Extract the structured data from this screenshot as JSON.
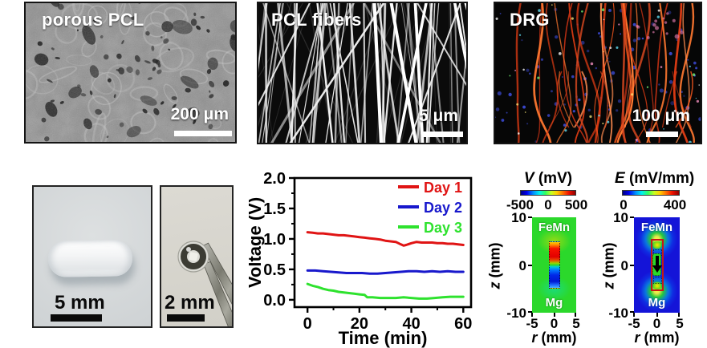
{
  "micrographs": [
    {
      "label": "porous PCL",
      "scale_bar": "200 μm"
    },
    {
      "label": "PCL fibers",
      "scale_bar": "5 μm"
    },
    {
      "label": "DRG",
      "scale_bar": "100 μm"
    }
  ],
  "photos": [
    {
      "scale_bar": "5 mm"
    },
    {
      "scale_bar": "2 mm"
    }
  ],
  "chart_data": {
    "type": "line",
    "title": "",
    "xlabel": "Time (min)",
    "ylabel": "Voltage (V)",
    "xlim": [
      -5,
      63
    ],
    "ylim": [
      -0.12,
      2.0
    ],
    "xticks": [
      "0",
      "20",
      "40",
      "60"
    ],
    "x_minor_ticks": [
      10,
      30,
      50
    ],
    "yticks": [
      "0.0",
      "0.5",
      "1.0",
      "1.5",
      "2.0"
    ],
    "y_minor_ticks": [
      0.25,
      0.75,
      1.25,
      1.75
    ],
    "grid": false,
    "legend_position": "top-right",
    "series": [
      {
        "name": "Day 1",
        "color": "#e01414",
        "x": [
          0,
          2,
          4,
          6,
          8,
          10,
          12,
          14,
          16,
          18,
          20,
          22,
          24,
          26,
          28,
          30,
          32,
          34,
          36,
          37,
          38,
          40,
          42,
          44,
          46,
          48,
          50,
          52,
          54,
          56,
          58,
          60
        ],
        "y": [
          1.11,
          1.1,
          1.09,
          1.09,
          1.08,
          1.07,
          1.06,
          1.06,
          1.05,
          1.04,
          1.03,
          1.02,
          1.01,
          1.0,
          0.99,
          0.97,
          0.96,
          0.95,
          0.91,
          0.89,
          0.9,
          0.93,
          0.95,
          0.94,
          0.94,
          0.94,
          0.93,
          0.93,
          0.92,
          0.92,
          0.91,
          0.9
        ]
      },
      {
        "name": "Day 2",
        "color": "#1818cc",
        "x": [
          0,
          3,
          6,
          9,
          12,
          15,
          18,
          21,
          24,
          27,
          30,
          33,
          36,
          39,
          42,
          45,
          48,
          51,
          54,
          57,
          60
        ],
        "y": [
          0.48,
          0.48,
          0.47,
          0.46,
          0.45,
          0.44,
          0.44,
          0.44,
          0.43,
          0.43,
          0.44,
          0.45,
          0.46,
          0.47,
          0.47,
          0.46,
          0.47,
          0.46,
          0.47,
          0.46,
          0.46
        ]
      },
      {
        "name": "Day 3",
        "color": "#2ee22e",
        "x": [
          0,
          2,
          4,
          6,
          8,
          10,
          12,
          14,
          16,
          18,
          20,
          22,
          23,
          25,
          28,
          31,
          34,
          37,
          40,
          43,
          46,
          49,
          52,
          55,
          58,
          60
        ],
        "y": [
          0.26,
          0.23,
          0.21,
          0.18,
          0.16,
          0.15,
          0.13,
          0.12,
          0.11,
          0.1,
          0.09,
          0.08,
          0.04,
          0.04,
          0.03,
          0.03,
          0.03,
          0.04,
          0.03,
          0.02,
          0.02,
          0.03,
          0.04,
          0.05,
          0.05,
          0.05
        ]
      }
    ]
  },
  "simulation": {
    "colormap": "jet",
    "v_map": {
      "title_var": "V",
      "title_unit": "(mV)",
      "colorbar_ticks": [
        "-500",
        "0",
        "500"
      ],
      "top_electrode": "FeMn",
      "bottom_electrode": "Mg",
      "y_label_var": "z",
      "y_label_unit": "(mm)",
      "x_label_var": "r",
      "x_label_unit": "(mm)",
      "yticks": [
        "10",
        "0",
        "-10"
      ],
      "xticks": [
        "-5",
        "0",
        "5"
      ]
    },
    "e_map": {
      "title_var": "E",
      "title_unit": "(mV/mm)",
      "colorbar_ticks": [
        "0",
        "400"
      ],
      "top_electrode": "FeMn",
      "bottom_electrode": "Mg",
      "y_label_var": "z",
      "y_label_unit": "(mm)",
      "x_label_var": "r",
      "x_label_unit": "(mm)",
      "yticks": [
        "10",
        "0",
        "-10"
      ],
      "xticks": [
        "-5",
        "0",
        "5"
      ]
    }
  },
  "colors": {
    "v_background": "#2bd82b",
    "e_background": "#1414d8",
    "electrode_outline": "#c81616",
    "day1": "#e01414",
    "day2": "#1818cc",
    "day3": "#2ee22e"
  }
}
